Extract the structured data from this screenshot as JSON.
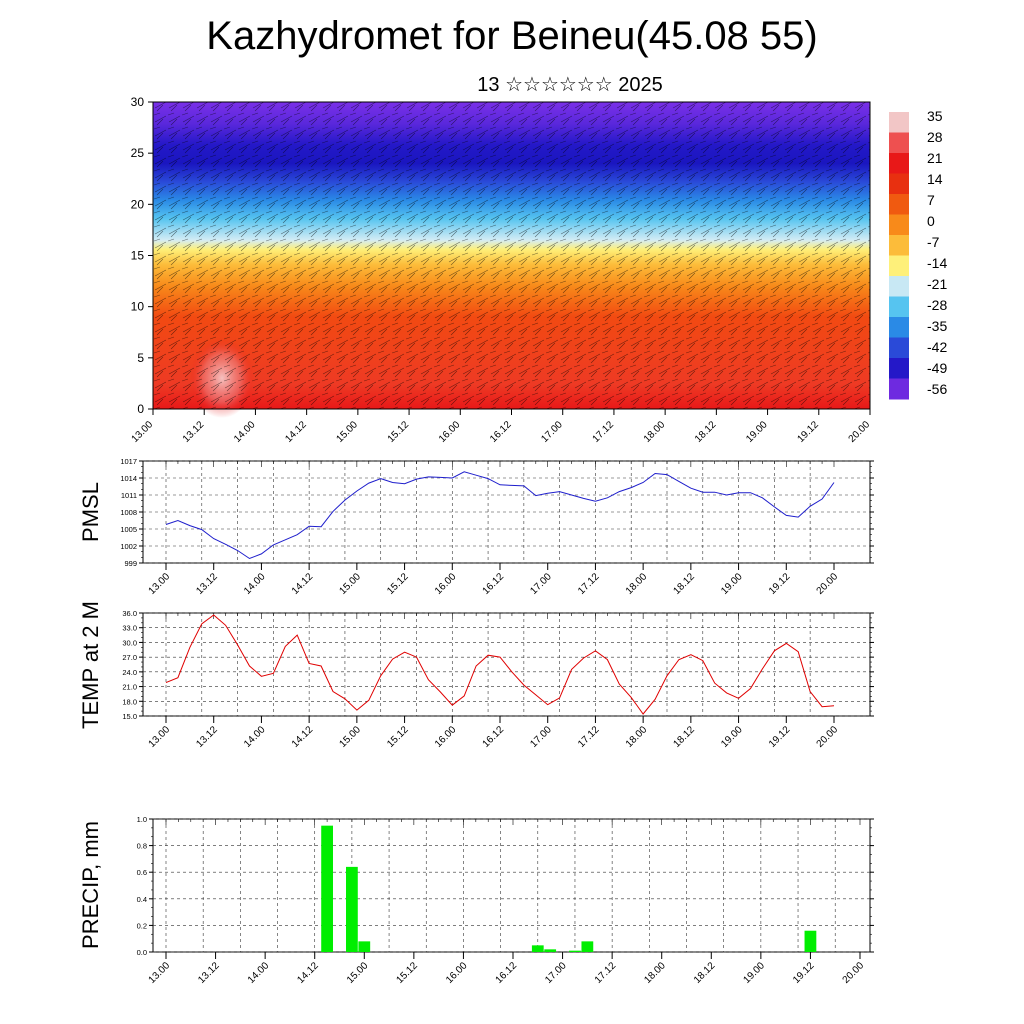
{
  "title": "Kazhydromet for Beineu(45.08 55)",
  "subtitle": "13 ☆☆☆☆☆☆ 2025",
  "time_labels": [
    "13.00",
    "13.12",
    "14.00",
    "14.12",
    "15.00",
    "15.12",
    "16.00",
    "16.12",
    "17.00",
    "17.12",
    "18.00",
    "18.12",
    "19.00",
    "19.12",
    "20.00"
  ],
  "chart_data": [
    {
      "type": "heatmap",
      "name": "cross-section",
      "ylim": [
        0,
        30
      ],
      "yticks": [
        "0",
        "5",
        "10",
        "15",
        "20",
        "25",
        "30"
      ],
      "colorbar_labels": [
        "35",
        "28",
        "21",
        "14",
        "7",
        "0",
        "-7",
        "-14",
        "-21",
        "-28",
        "-35",
        "-42",
        "-49",
        "-56"
      ],
      "colors": [
        "#f2c6c6",
        "#ee5050",
        "#e81818",
        "#e83010",
        "#f05a10",
        "#f88a1a",
        "#fcbc3a",
        "#fef07a",
        "#c8e8f4",
        "#56c4f0",
        "#2a8ae6",
        "#2a4ad8",
        "#2418c8",
        "#6e2ae0"
      ]
    },
    {
      "type": "line",
      "name": "pmsl",
      "ylabel": "PMSL",
      "ylim": [
        999,
        1017
      ],
      "yticks": [
        "999",
        "1002",
        "1005",
        "1008",
        "1011",
        "1014",
        "1017"
      ],
      "color": "#1e1ecc",
      "values": [
        1005.8,
        1006.5,
        1005.6,
        1004.9,
        1003.3,
        1002.3,
        1001.2,
        999.8,
        1000.6,
        1002.2,
        1003.1,
        1004.0,
        1005.5,
        1005.4,
        1008.1,
        1010.1,
        1011.7,
        1013.1,
        1013.9,
        1013.2,
        1013.0,
        1013.8,
        1014.2,
        1014.1,
        1014.0,
        1015.1,
        1014.5,
        1013.9,
        1012.8,
        1012.7,
        1012.6,
        1010.9,
        1011.3,
        1011.6,
        1011.0,
        1010.4,
        1009.9,
        1010.5,
        1011.6,
        1012.3,
        1013.2,
        1014.8,
        1014.6,
        1013.4,
        1012.2,
        1011.5,
        1011.5,
        1011.0,
        1011.4,
        1011.4,
        1010.5,
        1008.9,
        1007.4,
        1007.1,
        1009.0,
        1010.3,
        1013.2
      ]
    },
    {
      "type": "line",
      "name": "temperature",
      "ylabel": "TEMP at 2 M",
      "ylim": [
        15,
        36
      ],
      "yticks": [
        "15.0",
        "18.0",
        "21.0",
        "24.0",
        "27.0",
        "30.0",
        "33.0",
        "36.0"
      ],
      "color": "#e00000",
      "values": [
        21.8,
        22.8,
        29.0,
        33.8,
        35.6,
        33.5,
        29.5,
        25.2,
        23.1,
        23.7,
        29.2,
        31.5,
        25.7,
        25.2,
        20.0,
        18.5,
        16.2,
        18.2,
        23.2,
        26.6,
        28.0,
        27.0,
        22.4,
        19.9,
        17.2,
        19.1,
        25.2,
        27.4,
        27.0,
        24.0,
        21.3,
        19.3,
        17.3,
        18.7,
        24.5,
        26.8,
        28.3,
        26.5,
        21.5,
        18.8,
        15.4,
        18.4,
        23.2,
        26.5,
        27.5,
        26.3,
        21.7,
        19.7,
        18.6,
        20.6,
        24.6,
        28.3,
        29.8,
        28.1,
        20.0,
        16.9,
        17.1
      ]
    },
    {
      "type": "bar",
      "name": "precipitation",
      "ylabel": "PRECIP, mm",
      "ylim": [
        0,
        1.0
      ],
      "yticks": [
        "0.0",
        "0.2",
        "0.4",
        "0.6",
        "0.8",
        "1.0"
      ],
      "color": "#00ee00",
      "values": [
        0,
        0,
        0,
        0,
        0,
        0,
        0,
        0,
        0,
        0,
        0,
        0,
        0,
        0.95,
        0,
        0.64,
        0.08,
        0,
        0,
        0,
        0,
        0,
        0,
        0,
        0,
        0,
        0,
        0,
        0,
        0,
        0.05,
        0.02,
        0,
        0.01,
        0.08,
        0,
        0,
        0,
        0,
        0,
        0,
        0,
        0,
        0,
        0,
        0,
        0,
        0,
        0,
        0,
        0,
        0,
        0.16,
        0,
        0,
        0,
        0
      ]
    }
  ]
}
